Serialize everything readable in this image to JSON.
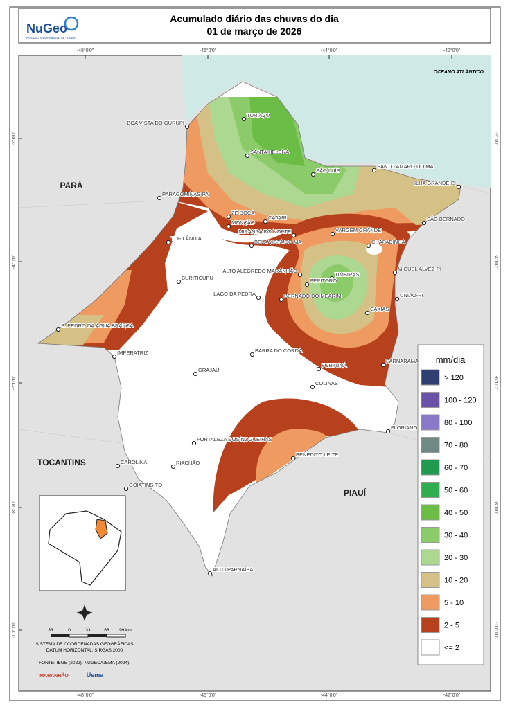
{
  "header": {
    "title": "Acumulado diário das chuvas do dia",
    "subtitle": "01 de março de 2026",
    "logo": {
      "name": "NuGeo",
      "caption": "NÚCLEO GEOAMBIENTAL - UEMA"
    }
  },
  "graticule": {
    "lon": [
      "-48°0'0\"",
      "-46°0'0\"",
      "-44°0'0\"",
      "-42°0'0\""
    ],
    "lat": [
      "-2°0'0\"",
      "-4°0'0\"",
      "-6°0'0\"",
      "-8°0'0\"",
      "-10°0'0\""
    ]
  },
  "regions": {
    "ocean": "OCEANO ATLÂNTICO",
    "para": "PARÁ",
    "tocantins": "TOCANTINS",
    "piaui": "PIAUÍ"
  },
  "cities": [
    "TURIAÇU",
    "BOA VISTA DO GURUPI",
    "SANTA HELENA",
    "SÃO LUÍS",
    "SANTO AMARO DO MA",
    "ILHA GRANDE-PI",
    "PARAGOMINAS-PA",
    "ZÉ DOCA",
    "CAJARI",
    "SÃO BERNADO",
    "MONÇÃO",
    "MIRANDA DO NORTE",
    "VARGEM GRANDE",
    "TUFILÂNDIA",
    "BELA VISTA DO MA",
    "CHAPADINHA",
    "ALTO ALEGREDO MARANHÃO",
    "MIGUEL ALVEZ-PI",
    "TIMBIRAS",
    "BURITICUPU",
    "PERITORÓ",
    "LAGO DA PEDRA",
    "UNIÃO-PI",
    "BERNADO DO MEARIM",
    "CAXIAS",
    "S. PEDRO DA ÁGUA BRANCA",
    "IMPERATRIZ",
    "BARRA DO CORDA",
    "PARNARAMA",
    "FORTUNA",
    "GRAJAÚ",
    "COLINAS",
    "FLORIANO",
    "FORTALEZA DOS NOGUEIRAS",
    "BENEDITO LEITE",
    "CAROLINA",
    "RIACHÃO",
    "GOIATINS-TO",
    "ALTO PARNAÍBA"
  ],
  "legend": {
    "title": "mm/dia",
    "items": [
      {
        "label": "> 120",
        "color": "#2f3f72"
      },
      {
        "label": "100 - 120",
        "color": "#6a52a8"
      },
      {
        "label": "80 - 100",
        "color": "#8a78c8"
      },
      {
        "label": "70 - 80",
        "color": "#6f8985"
      },
      {
        "label": "60 - 70",
        "color": "#1f9a4e"
      },
      {
        "label": "50 - 60",
        "color": "#30ad4f"
      },
      {
        "label": "40 - 50",
        "color": "#6bbd46"
      },
      {
        "label": "30 - 40",
        "color": "#8ccb69"
      },
      {
        "label": "20 - 30",
        "color": "#add892"
      },
      {
        "label": "10 - 20",
        "color": "#d5c186"
      },
      {
        "label": "5 - 10",
        "color": "#ee9a60"
      },
      {
        "label": "2 - 5",
        "color": "#b8411d"
      },
      {
        "label": "<= 2",
        "color": "#ffffff"
      }
    ]
  },
  "scale_bar": [
    "33",
    "0",
    "33",
    "66",
    "99 km"
  ],
  "notes": [
    "SISTEMA DE COORDENADAS GEOGRÁFICAS",
    "DATUM HORIZONTAL: SIRGAS 2000",
    "FONTE: IBGE (2022); NUGEO/UEMA (2024)."
  ],
  "logos": [
    "MARANHÃO",
    "Uema"
  ]
}
